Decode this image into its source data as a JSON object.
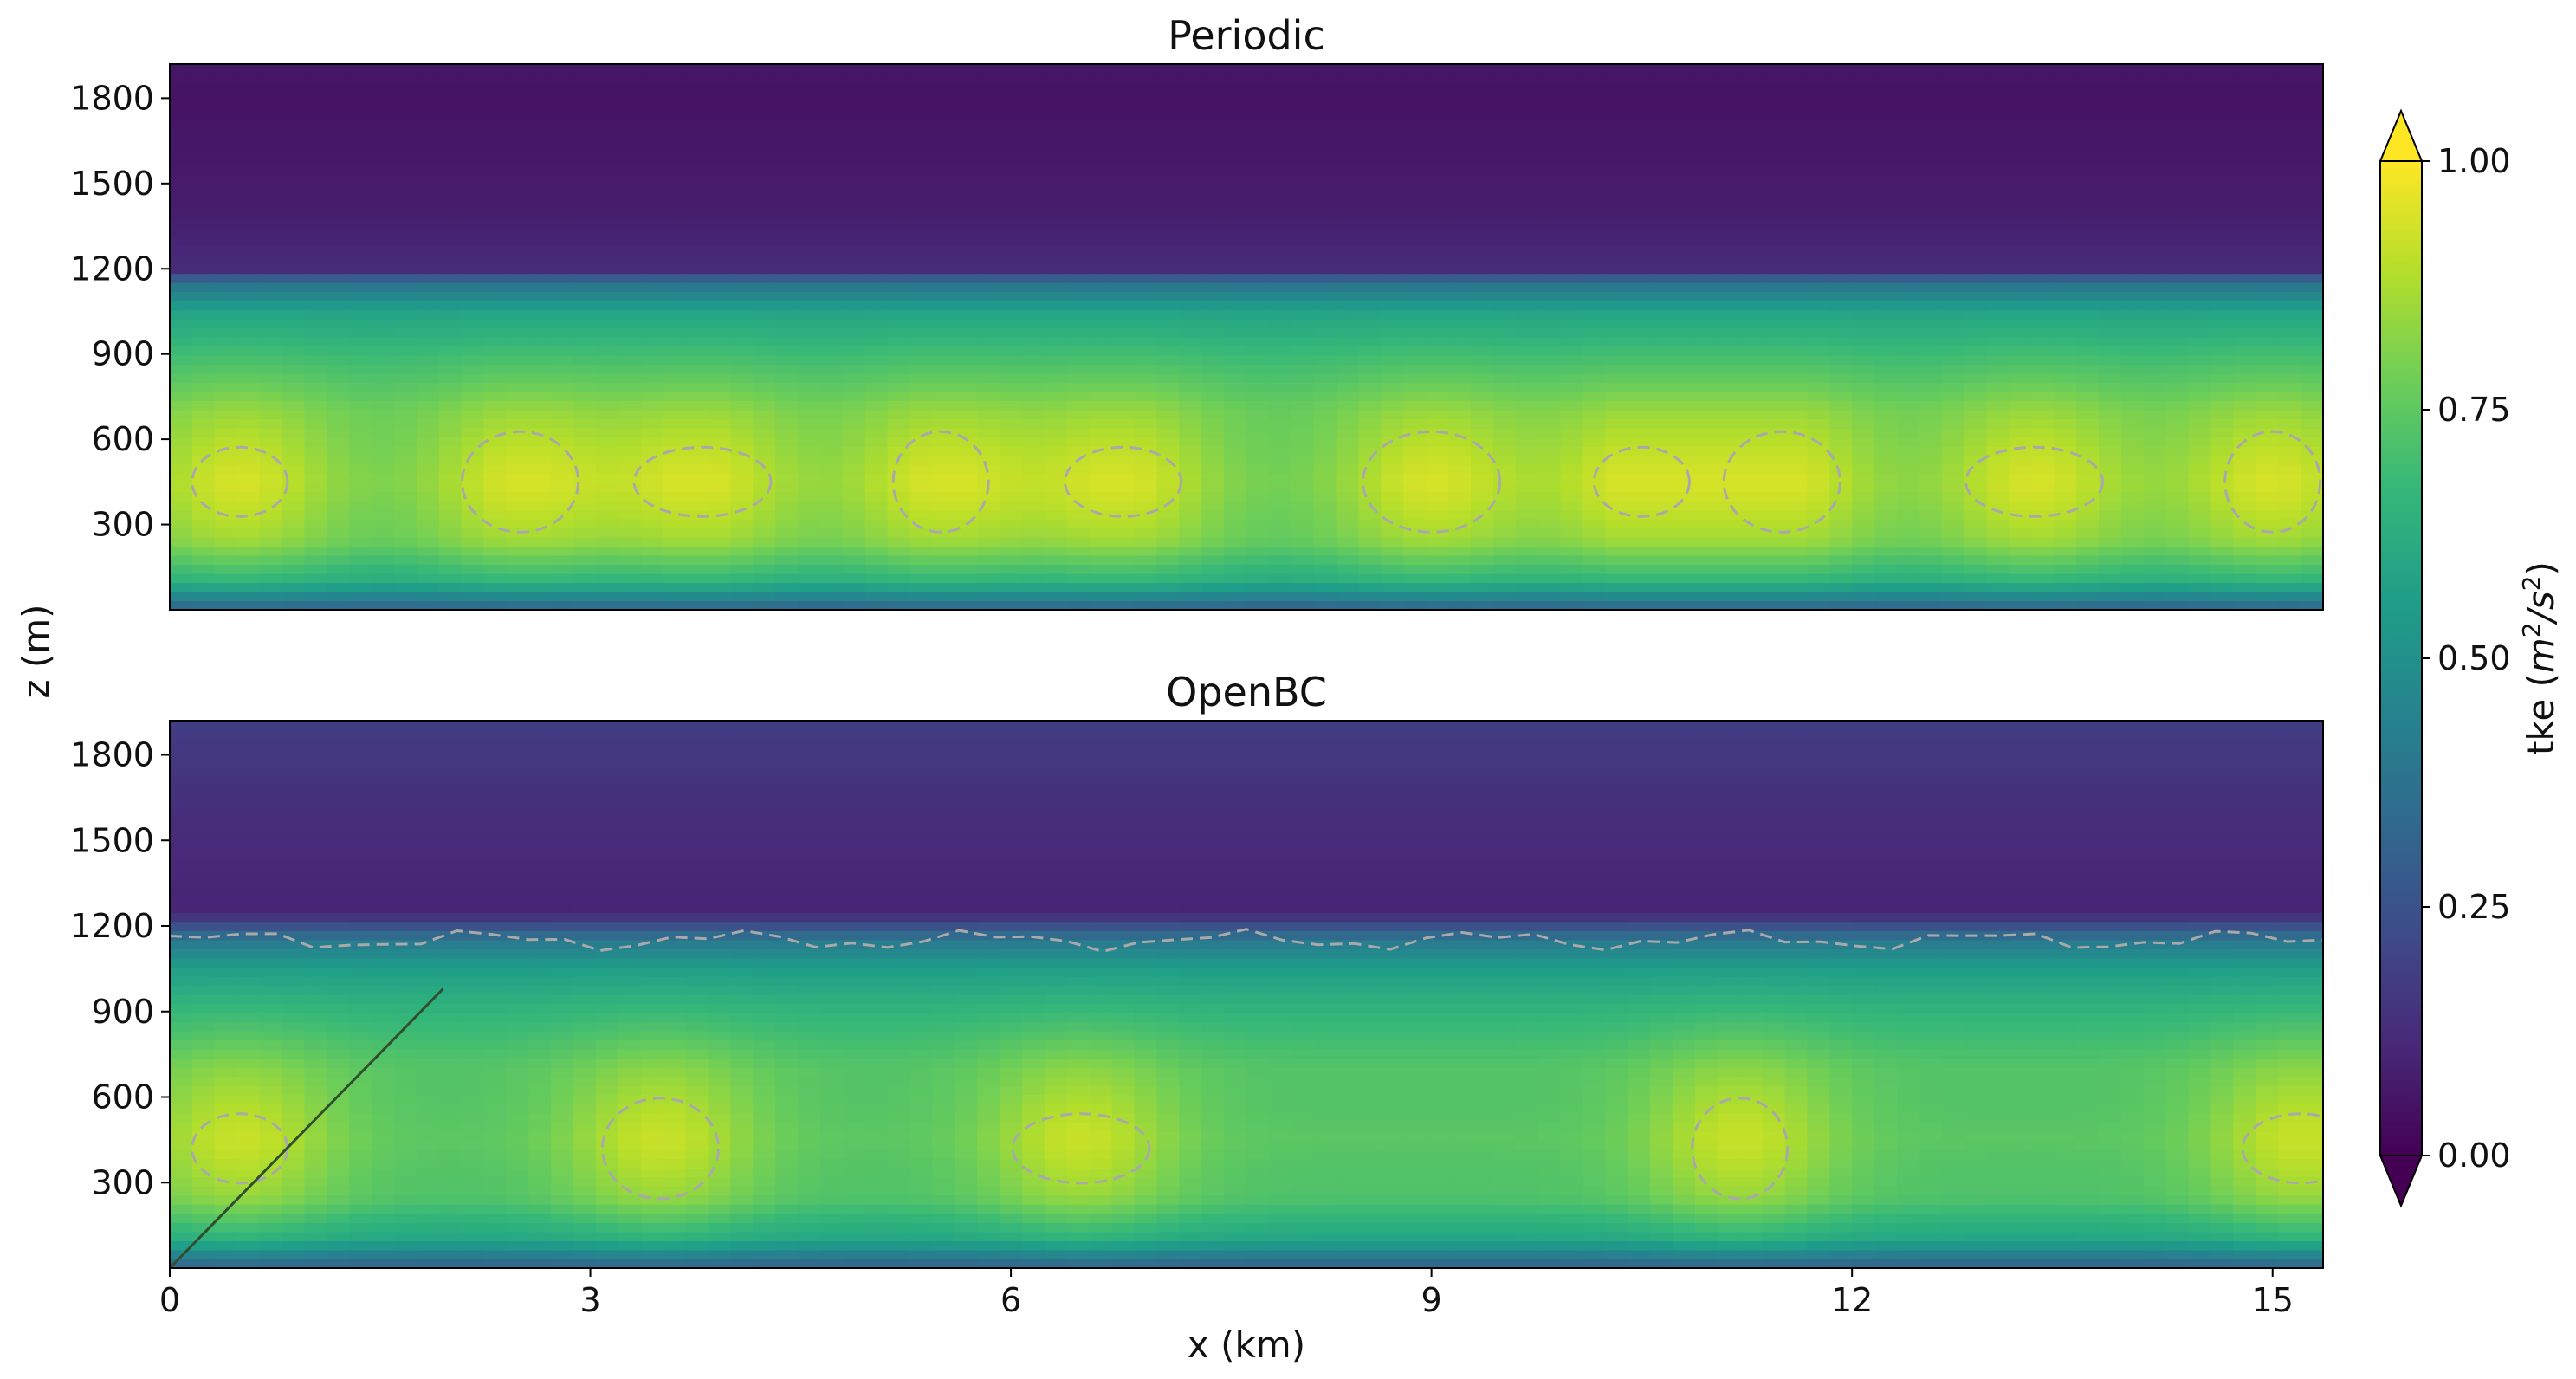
{
  "chart_data": {
    "type": "heatmap",
    "variable": "tke",
    "colorbar": {
      "label_text": "tke (",
      "label_unit_base": "m",
      "label_unit_exp": "2",
      "label_unit_sep": "/s",
      "label_unit_exp2": "2",
      "label_close": ")",
      "range": [
        0.0,
        1.0
      ],
      "ticks": [
        0.0,
        0.25,
        0.5,
        0.75,
        1.0
      ],
      "tick_labels": [
        "0.00",
        "0.25",
        "0.50",
        "0.75",
        "1.00"
      ],
      "extend": "both",
      "colormap": "viridis",
      "colors": [
        "#440154",
        "#482878",
        "#3e4a89",
        "#31688e",
        "#26828e",
        "#1f9e89",
        "#35b779",
        "#6ece58",
        "#b5de2b",
        "#fde725"
      ]
    },
    "xlabel": "x (km)",
    "ylabel": "z (m)",
    "xlim": [
      0,
      15.36
    ],
    "ylim": [
      0,
      1920
    ],
    "xticks": [
      0,
      3,
      6,
      9,
      12,
      15
    ],
    "xtick_labels": [
      "0",
      "3",
      "6",
      "9",
      "12",
      "15"
    ],
    "yticks": [
      300,
      600,
      900,
      1200,
      1500,
      1800
    ],
    "ytick_labels": [
      "300",
      "600",
      "900",
      "1200",
      "1500",
      "1800"
    ],
    "contour_line_color": "#a9a9a9",
    "annotation_line": {
      "color": "#2f4f2f",
      "x": [
        0,
        1.95
      ],
      "z": [
        0,
        980
      ]
    },
    "panels": [
      {
        "title": "Periodic",
        "profile_z": [
          0,
          100,
          250,
          450,
          700,
          900,
          1050,
          1150,
          1200,
          1400,
          1800,
          1920
        ],
        "profile_tke": [
          0.3,
          0.62,
          0.78,
          0.82,
          0.78,
          0.68,
          0.58,
          0.38,
          0.12,
          0.08,
          0.05,
          0.06
        ],
        "hotspots_x": [
          0.5,
          2.5,
          3.8,
          5.5,
          6.8,
          9.0,
          10.5,
          11.5,
          13.3,
          15.0
        ]
      },
      {
        "title": "OpenBC",
        "profile_z": [
          0,
          100,
          250,
          450,
          700,
          900,
          1050,
          1150,
          1250,
          1500,
          1800,
          1920
        ],
        "profile_tke": [
          0.3,
          0.6,
          0.76,
          0.8,
          0.76,
          0.66,
          0.56,
          0.4,
          0.1,
          0.12,
          0.16,
          0.18
        ],
        "hotspots_x": [
          0.5,
          3.5,
          6.5,
          11.2,
          15.2
        ]
      }
    ]
  }
}
